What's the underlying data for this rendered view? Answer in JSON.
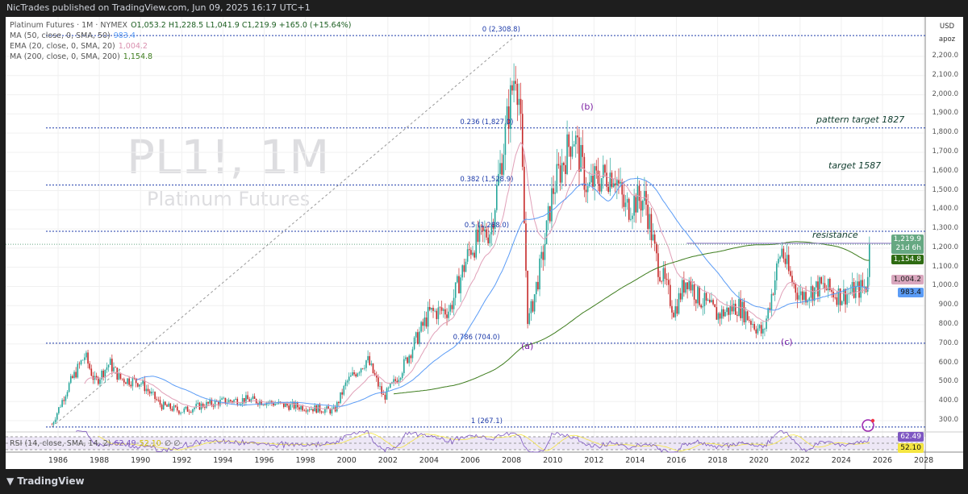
{
  "publish_line": "NicTrades published on TradingView.com, Jun 09, 2025 16:17 UTC+1",
  "brand": "TradingView",
  "legend": {
    "symbol": "Platinum Futures · 1M · NYMEX",
    "ohlc": "O1,053.2  H1,228.5  L1,041.9  C1,219.9  +165.0 (+15.64%)",
    "ma50_label": "MA (50, close, 0, SMA, 50)",
    "ma50_value": "983.4",
    "ema20_label": "EMA (20, close, 0, SMA, 20)",
    "ema20_value": "1,004.2",
    "ma200_label": "MA (200, close, 0, SMA, 200)",
    "ma200_value": "1,154.8",
    "rsi_label": "RSI (14, close, SMA, 14, 2)",
    "rsi_value": "62.49",
    "rsi_ma_value": "52.10",
    "rsi_extra": "∅  ∅"
  },
  "watermark": {
    "ticker": "PL1!, 1M",
    "name": "Platinum Futures"
  },
  "price_axis": {
    "currency": "USD",
    "unit": "apoz"
  },
  "tags": {
    "last": "1,219.9",
    "countdown": "21d 6h",
    "ma200": "1,154.8",
    "ema20": "1,004.2",
    "ma50": "983.4",
    "rsi": "62.49",
    "rsi_ma": "52.10"
  },
  "colors": {
    "up": "#26a69a",
    "down": "#c62828",
    "ma50": "#5b9cf6",
    "ema20": "#e0a0b8",
    "ma200": "#3e7d1e",
    "rsi": "#7e57c2",
    "rsi_ma": "#f5e642",
    "fib": "#1c3aa9"
  },
  "chart_data": {
    "type": "candlestick",
    "title": "Platinum Futures · 1M · NYMEX",
    "ylim": [
      250,
      2330
    ],
    "xlim": [
      1984.6,
      2027.2
    ],
    "y_ticks": [
      300,
      400,
      500,
      600,
      700,
      800,
      900,
      1000,
      1100,
      1200,
      1300,
      1400,
      1500,
      1600,
      1700,
      1800,
      1900,
      2000,
      2100,
      2200
    ],
    "y_tick_labels": [
      "300.0",
      "400.0",
      "500.0",
      "600.0",
      "700.0",
      "800.0",
      "900.0",
      "1,000.0",
      "1,100.0",
      "1,200.0",
      "1,300.0",
      "1,400.0",
      "1,500.0",
      "1,600.0",
      "1,700.0",
      "1,800.0",
      "1,900.0",
      "2,000.0",
      "2,100.0",
      "2,200.0"
    ],
    "x_ticks": [
      "1986",
      "1988",
      "1990",
      "1992",
      "1994",
      "1996",
      "1998",
      "2000",
      "2002",
      "2004",
      "2006",
      "2008",
      "2010",
      "2012",
      "2014",
      "2016",
      "2018",
      "2020",
      "2022",
      "2024",
      "2026",
      "2028"
    ],
    "price_path": [
      [
        1985.7,
        280
      ],
      [
        1986.5,
        480
      ],
      [
        1987.3,
        640
      ],
      [
        1987.8,
        500
      ],
      [
        1988.5,
        600
      ],
      [
        1989,
        520
      ],
      [
        1990,
        500
      ],
      [
        1991,
        380
      ],
      [
        1992,
        350
      ],
      [
        1993,
        380
      ],
      [
        1994,
        400
      ],
      [
        1995,
        410
      ],
      [
        1996,
        400
      ],
      [
        1997,
        380
      ],
      [
        1998,
        370
      ],
      [
        1999.4,
        350
      ],
      [
        2000,
        500
      ],
      [
        2001,
        620
      ],
      [
        2001.8,
        420
      ],
      [
        2002.5,
        530
      ],
      [
        2003,
        640
      ],
      [
        2004,
        860
      ],
      [
        2005,
        880
      ],
      [
        2006,
        1200
      ],
      [
        2007,
        1300
      ],
      [
        2008.2,
        2150
      ],
      [
        2008.4,
        1950
      ],
      [
        2008.8,
        800
      ],
      [
        2009.5,
        1150
      ],
      [
        2010,
        1500
      ],
      [
        2011,
        1800
      ],
      [
        2011.7,
        1500
      ],
      [
        2012,
        1550
      ],
      [
        2013,
        1600
      ],
      [
        2013.5,
        1400
      ],
      [
        2014,
        1450
      ],
      [
        2014.5,
        1450
      ],
      [
        2015,
        1150
      ],
      [
        2015.9,
        870
      ],
      [
        2016.5,
        1050
      ],
      [
        2017,
        950
      ],
      [
        2018,
        850
      ],
      [
        2019,
        900
      ],
      [
        2020.2,
        750
      ],
      [
        2021.1,
        1200
      ],
      [
        2021.5,
        1050
      ],
      [
        2022,
        950
      ],
      [
        2023,
        1000
      ],
      [
        2024,
        950
      ],
      [
        2025.2,
        1000
      ],
      [
        2025.4,
        1219.9
      ]
    ],
    "fib_levels": [
      {
        "label": "0 (2,308.8)",
        "value": 2308.8
      },
      {
        "label": "0.236 (1,827.0)",
        "value": 1827.0
      },
      {
        "label": "0.382 (1,528.9)",
        "value": 1528.9
      },
      {
        "label": "0.5 (1,288.0)",
        "value": 1288.0
      },
      {
        "label": "0.786 (704.0)",
        "value": 704.0
      },
      {
        "label": "1 (267.1)",
        "value": 267.1
      }
    ],
    "annotations": [
      {
        "text": "pattern target 1827",
        "value": 1827
      },
      {
        "text": "target 1587",
        "value": 1587
      },
      {
        "text": "resistance",
        "value": 1250
      }
    ],
    "waves": [
      {
        "text": "(b)",
        "year": 2011.6,
        "value": 1940
      },
      {
        "text": "(a)",
        "year": 2008.7,
        "value": 690
      },
      {
        "text": "(c)",
        "year": 2021.3,
        "value": 710
      }
    ],
    "last_price": 1219.9
  }
}
